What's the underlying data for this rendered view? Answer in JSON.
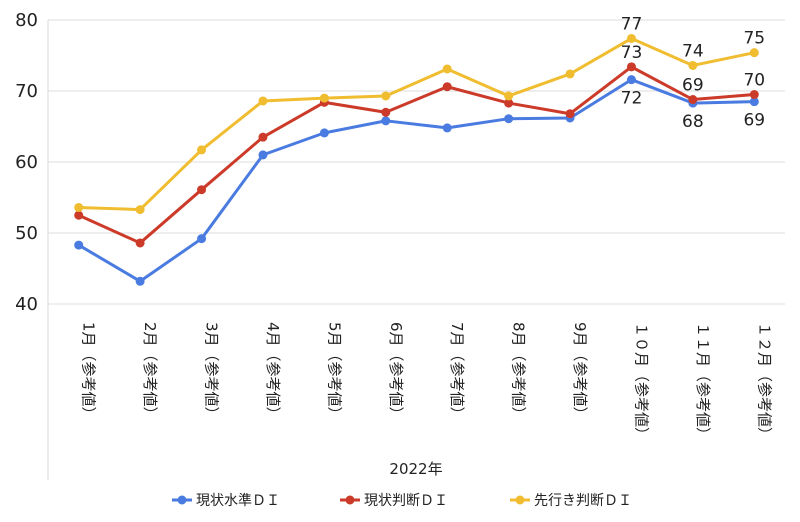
{
  "chart_data": {
    "type": "line",
    "categories": [
      "1月（参考値）",
      "2月（参考値）",
      "3月（参考値）",
      "4月（参考値）",
      "5月（参考値）",
      "6月（参考値）",
      "7月（参考値）",
      "8月（参考値）",
      "9月（参考値）",
      "１０月（参考値）",
      "１１月（参考値）",
      "１２月（参考値）"
    ],
    "xlabel": "2022年",
    "ylim": [
      40,
      80
    ],
    "yticks": [
      40,
      50,
      60,
      70,
      80
    ],
    "grid": true,
    "legend": "bottom",
    "series": [
      {
        "name": "現状水準ＤＩ",
        "color": "#4A7BE0",
        "values": [
          48.3,
          43.2,
          49.2,
          61.0,
          64.1,
          65.8,
          64.8,
          66.1,
          66.2,
          71.6,
          68.3,
          68.5
        ]
      },
      {
        "name": "現状判断ＤＩ",
        "color": "#CC3B2A",
        "values": [
          52.5,
          48.6,
          56.1,
          63.5,
          68.4,
          67.0,
          70.6,
          68.3,
          66.8,
          73.4,
          68.8,
          69.5
        ]
      },
      {
        "name": "先行き判断ＤＩ",
        "color": "#F0BD30",
        "values": [
          53.6,
          53.3,
          61.7,
          68.6,
          69.0,
          69.3,
          73.1,
          69.3,
          72.4,
          77.4,
          73.6,
          75.4
        ]
      }
    ],
    "data_labels": [
      {
        "series": 0,
        "index": 9,
        "text": "72",
        "pos": "below"
      },
      {
        "series": 0,
        "index": 10,
        "text": "68",
        "pos": "below"
      },
      {
        "series": 0,
        "index": 11,
        "text": "69",
        "pos": "below"
      },
      {
        "series": 1,
        "index": 9,
        "text": "73",
        "pos": "above"
      },
      {
        "series": 1,
        "index": 10,
        "text": "69",
        "pos": "above"
      },
      {
        "series": 1,
        "index": 11,
        "text": "70",
        "pos": "above"
      },
      {
        "series": 2,
        "index": 9,
        "text": "77",
        "pos": "above"
      },
      {
        "series": 2,
        "index": 10,
        "text": "74",
        "pos": "above"
      },
      {
        "series": 2,
        "index": 11,
        "text": "75",
        "pos": "above"
      }
    ]
  }
}
